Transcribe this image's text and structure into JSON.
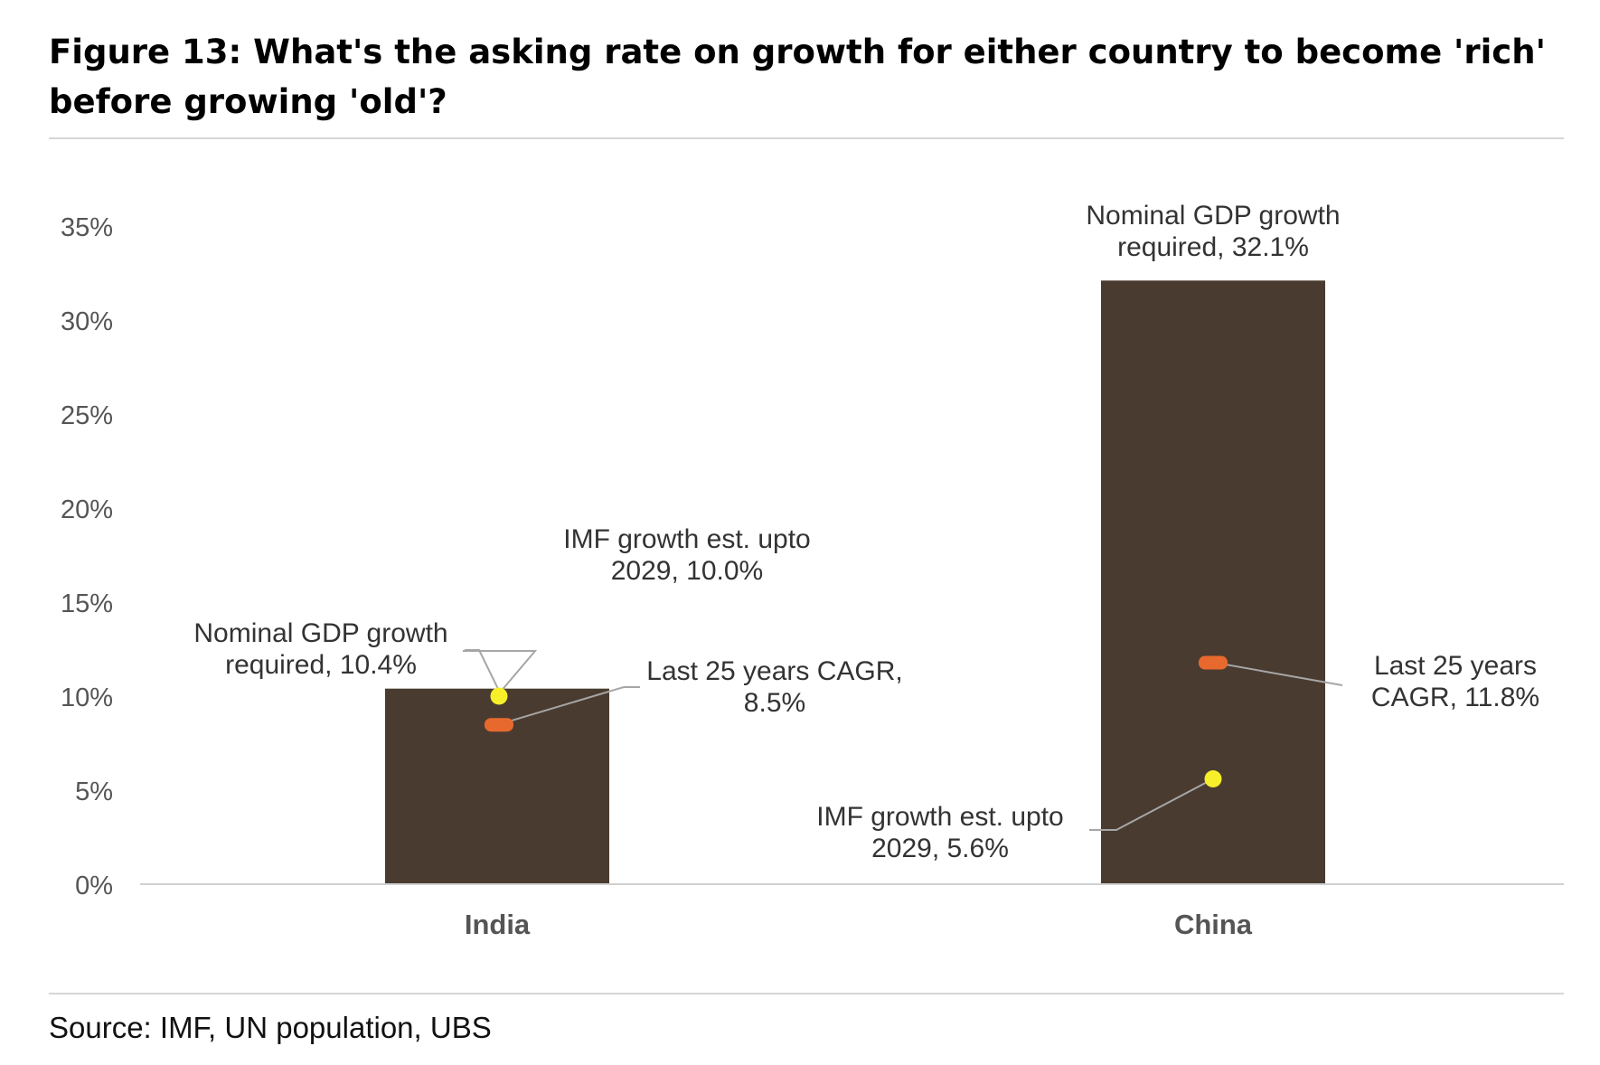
{
  "title": "Figure 13: What's the asking rate on growth for either country to become 'rich' before growing 'old'?",
  "source": "Source: IMF, UN population, UBS",
  "colors": {
    "bar": "#4a3b30",
    "imf_marker": "#f6ef2a",
    "cagr_marker": "#e8692d",
    "axis": "#d0d0d0",
    "leader": "#a6a6a6",
    "text": "#333333"
  },
  "chart_data": {
    "type": "bar",
    "categories": [
      "India",
      "China"
    ],
    "ylim": [
      0,
      35
    ],
    "ytick_labels": [
      "0%",
      "5%",
      "10%",
      "15%",
      "20%",
      "25%",
      "30%",
      "35%"
    ],
    "series": [
      {
        "values": [
          10.4,
          32.1
        ]
      },
      {
        "values": [
          10.0,
          5.6
        ]
      },
      {
        "values": [
          8.5,
          11.8
        ]
      }
    ],
    "annotations": {
      "India": {
        "required": [
          "Nominal GDP growth",
          "required, 10.4%"
        ],
        "imf": [
          "IMF growth est. upto",
          "2029, 10.0%"
        ],
        "cagr": [
          "Last 25 years CAGR,",
          "8.5%"
        ]
      },
      "China": {
        "required": [
          "Nominal GDP growth",
          "required, 32.1%"
        ],
        "imf": [
          "IMF growth est. upto",
          "2029, 5.6%"
        ],
        "cagr": [
          "Last 25 years",
          "CAGR, 11.8%"
        ]
      }
    }
  }
}
